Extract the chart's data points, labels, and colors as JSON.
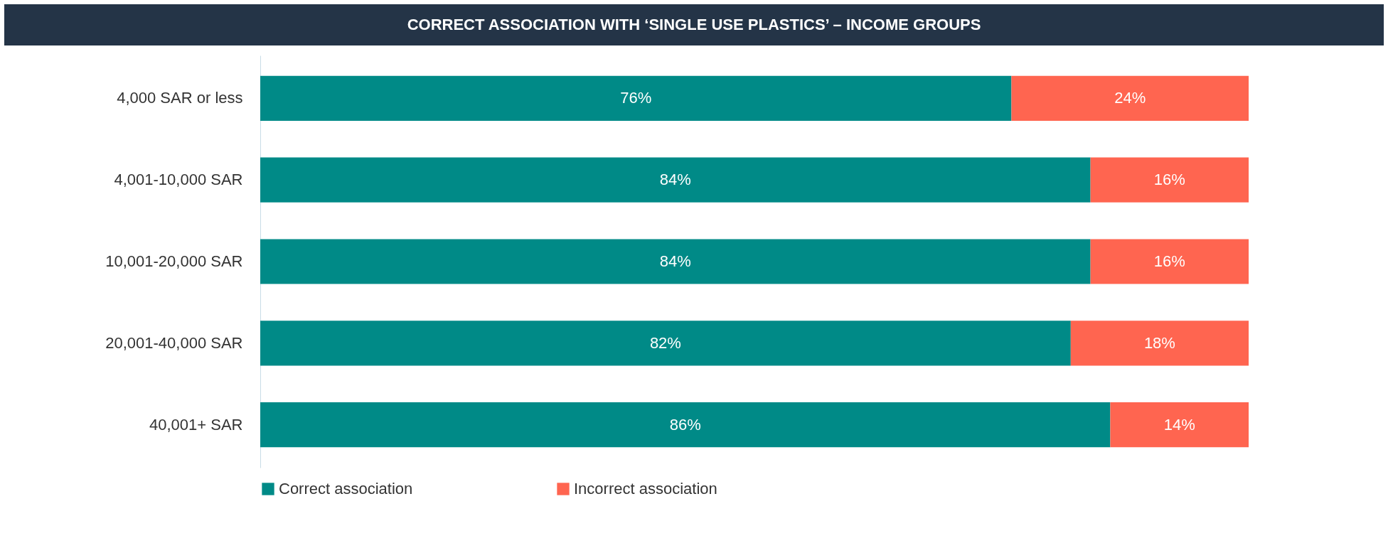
{
  "chart_data": {
    "type": "bar",
    "orientation": "horizontal",
    "stacked": true,
    "title": "CORRECT ASSOCIATION WITH ‘SINGLE USE PLASTICS’ – INCOME GROUPS",
    "categories": [
      "4,000 SAR or less",
      "4,001-10,000 SAR",
      "10,001-20,000 SAR",
      "20,001-40,000 SAR",
      "40,001+ SAR"
    ],
    "series": [
      {
        "name": "Correct association",
        "color": "#008a87",
        "values": [
          76,
          84,
          84,
          82,
          86
        ],
        "value_labels": [
          "76%",
          "84%",
          "84%",
          "82%",
          "86%"
        ]
      },
      {
        "name": "Incorrect association",
        "color": "#ff6550",
        "values": [
          24,
          16,
          16,
          18,
          14
        ],
        "value_labels": [
          "24%",
          "16%",
          "16%",
          "18%",
          "14%"
        ]
      }
    ],
    "legend": "bottom"
  }
}
